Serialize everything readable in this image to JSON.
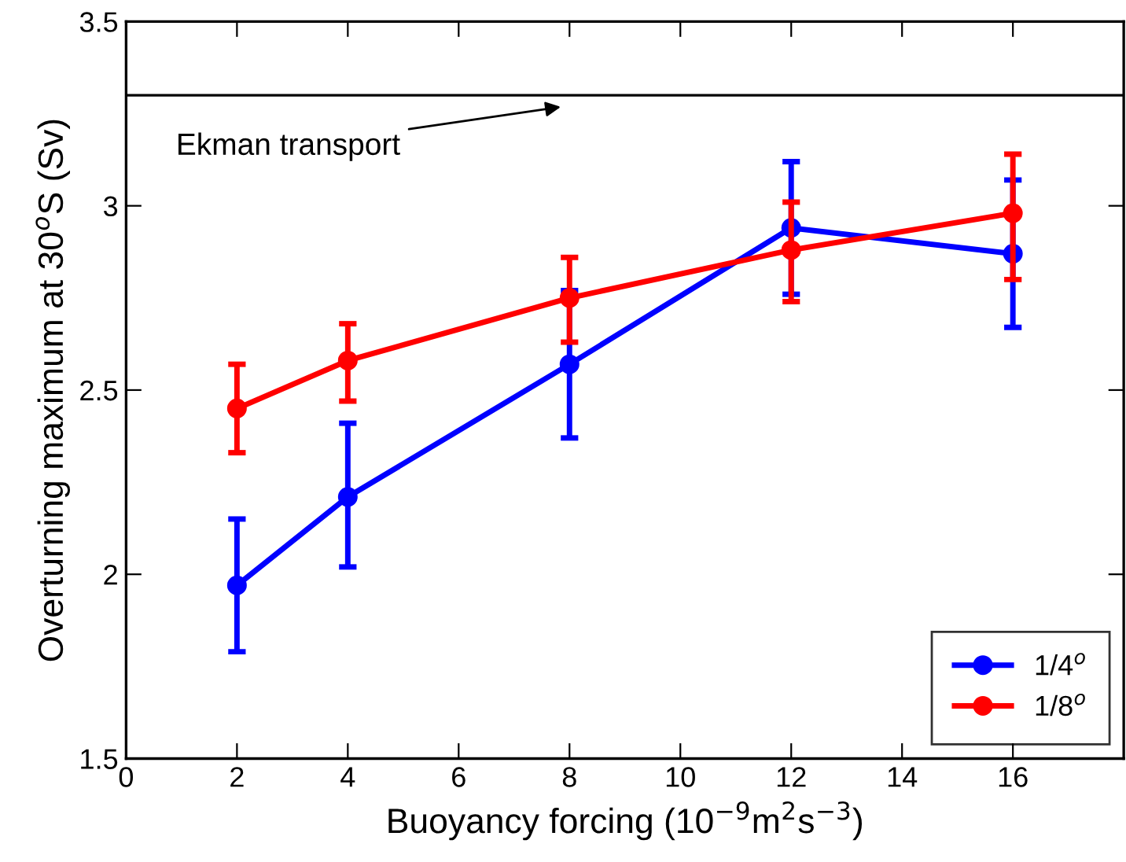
{
  "chart_data": {
    "type": "line",
    "xlabel": "Buoyancy forcing (10$^{−9}$m$^{2}$s$^{−3}$)",
    "ylabel": "Overturning maximum at 30$^{o}$S (Sv)",
    "x": [
      2,
      4,
      8,
      12,
      16
    ],
    "series": [
      {
        "name": "1/4$^{o}$",
        "color": "#0000ff",
        "values": [
          1.97,
          2.21,
          2.57,
          2.94,
          2.87
        ],
        "errors": [
          [
            1.79,
            2.15
          ],
          [
            2.02,
            2.41
          ],
          [
            2.37,
            2.77
          ],
          [
            2.76,
            3.12
          ],
          [
            2.67,
            3.07
          ]
        ]
      },
      {
        "name": "1/8$^{o}$",
        "color": "#ff0000",
        "values": [
          2.45,
          2.58,
          2.75,
          2.88,
          2.98
        ],
        "errors": [
          [
            2.33,
            2.57
          ],
          [
            2.47,
            2.68
          ],
          [
            2.63,
            2.86
          ],
          [
            2.74,
            3.01
          ],
          [
            2.8,
            3.14
          ]
        ]
      }
    ],
    "ref_lines": [
      {
        "axis": "y",
        "value": 3.3,
        "label": "Ekman transport",
        "color": "#000000"
      }
    ],
    "xlim": [
      0,
      18
    ],
    "ylim": [
      1.5,
      3.5
    ],
    "xticks": [
      0,
      2,
      4,
      6,
      8,
      10,
      12,
      14,
      16
    ],
    "yticks": [
      1.5,
      2,
      2.5,
      3,
      3.5
    ],
    "grid": false,
    "legend": "bottom right",
    "marker": "circle",
    "line_style": "solid"
  }
}
